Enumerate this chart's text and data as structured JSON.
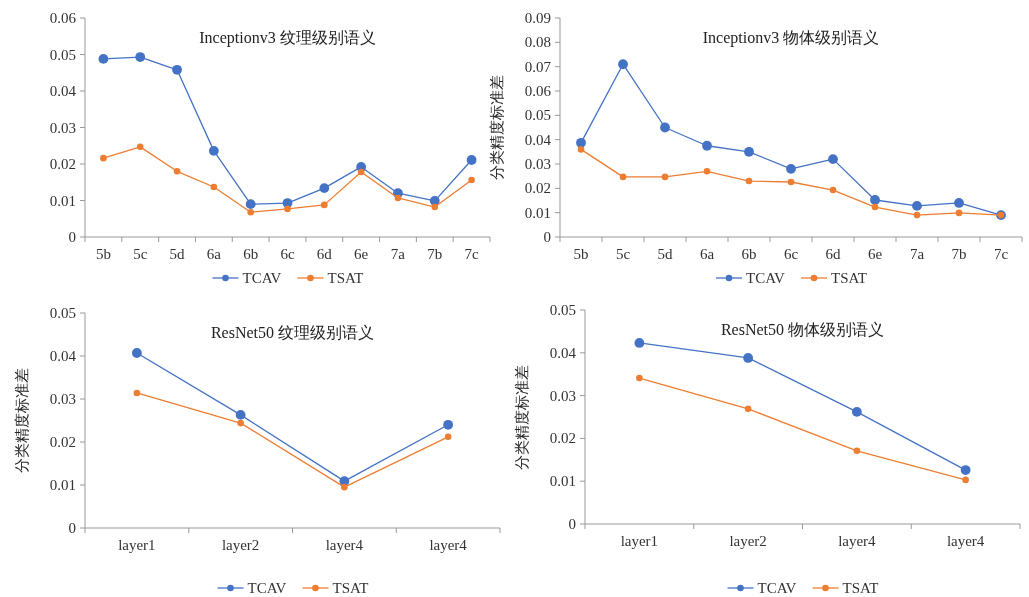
{
  "chart_data": [
    {
      "type": "line",
      "title": "Inceptionv3 纹理级别语义",
      "categories": [
        "5b",
        "5c",
        "5d",
        "6a",
        "6b",
        "6c",
        "6d",
        "6e",
        "7a",
        "7b",
        "7c"
      ],
      "ylim": [
        0,
        0.06
      ],
      "yticks": [
        0,
        0.01,
        0.02,
        0.03,
        0.04,
        0.05,
        0.06
      ],
      "legend": "bottom",
      "marker": "circle",
      "series": [
        {
          "name": "TCAV",
          "color": "#4472c4",
          "values": [
            0.0488,
            0.0493,
            0.0458,
            0.0236,
            0.009,
            0.0093,
            0.0134,
            0.0192,
            0.012,
            0.0099,
            0.0211
          ]
        },
        {
          "name": "TSAT",
          "color": "#ed7d31",
          "values": [
            0.0216,
            0.0247,
            0.018,
            0.0137,
            0.0068,
            0.0077,
            0.0088,
            0.0178,
            0.0107,
            0.0082,
            0.0156
          ]
        }
      ]
    },
    {
      "type": "line",
      "title": "Inceptionv3 物体级别语义",
      "ylabel": "分类精度标准差",
      "categories": [
        "5b",
        "5c",
        "5d",
        "6a",
        "6b",
        "6c",
        "6d",
        "6e",
        "7a",
        "7b",
        "7c"
      ],
      "ylim": [
        0,
        0.09
      ],
      "yticks": [
        0,
        0.01,
        0.02,
        0.03,
        0.04,
        0.05,
        0.06,
        0.07,
        0.08,
        0.09
      ],
      "legend": "bottom",
      "marker": "circle",
      "series": [
        {
          "name": "TCAV",
          "color": "#4472c4",
          "values": [
            0.0387,
            0.071,
            0.045,
            0.0375,
            0.035,
            0.028,
            0.032,
            0.0152,
            0.0128,
            0.014,
            0.009
          ]
        },
        {
          "name": "TSAT",
          "color": "#ed7d31",
          "values": [
            0.036,
            0.0247,
            0.0247,
            0.027,
            0.023,
            0.0226,
            0.0193,
            0.0123,
            0.009,
            0.0099,
            0.009
          ]
        }
      ]
    },
    {
      "type": "line",
      "title": "ResNet50 纹理级别语义",
      "ylabel": "分类精度标准差",
      "categories": [
        "layer1",
        "layer2",
        "layer4",
        "layer4"
      ],
      "ylim": [
        0,
        0.05
      ],
      "yticks": [
        0,
        0.01,
        0.02,
        0.03,
        0.04,
        0.05
      ],
      "legend": "bottom",
      "marker": "circle",
      "series": [
        {
          "name": "TCAV",
          "color": "#4472c4",
          "values": [
            0.0407,
            0.0263,
            0.0109,
            0.024
          ]
        },
        {
          "name": "TSAT",
          "color": "#ed7d31",
          "values": [
            0.0314,
            0.0244,
            0.0095,
            0.0212
          ]
        }
      ]
    },
    {
      "type": "line",
      "title": "ResNet50 物体级别语义",
      "ylabel": "分类精度标准差",
      "categories": [
        "layer1",
        "layer2",
        "layer4",
        "layer4"
      ],
      "ylim": [
        0,
        0.05
      ],
      "yticks": [
        0,
        0.01,
        0.02,
        0.03,
        0.04,
        0.05
      ],
      "legend": "bottom",
      "marker": "circle",
      "series": [
        {
          "name": "TCAV",
          "color": "#4472c4",
          "values": [
            0.0423,
            0.0388,
            0.0262,
            0.0126
          ]
        },
        {
          "name": "TSAT",
          "color": "#ed7d31",
          "values": [
            0.0341,
            0.0269,
            0.0171,
            0.0103
          ]
        }
      ]
    }
  ]
}
